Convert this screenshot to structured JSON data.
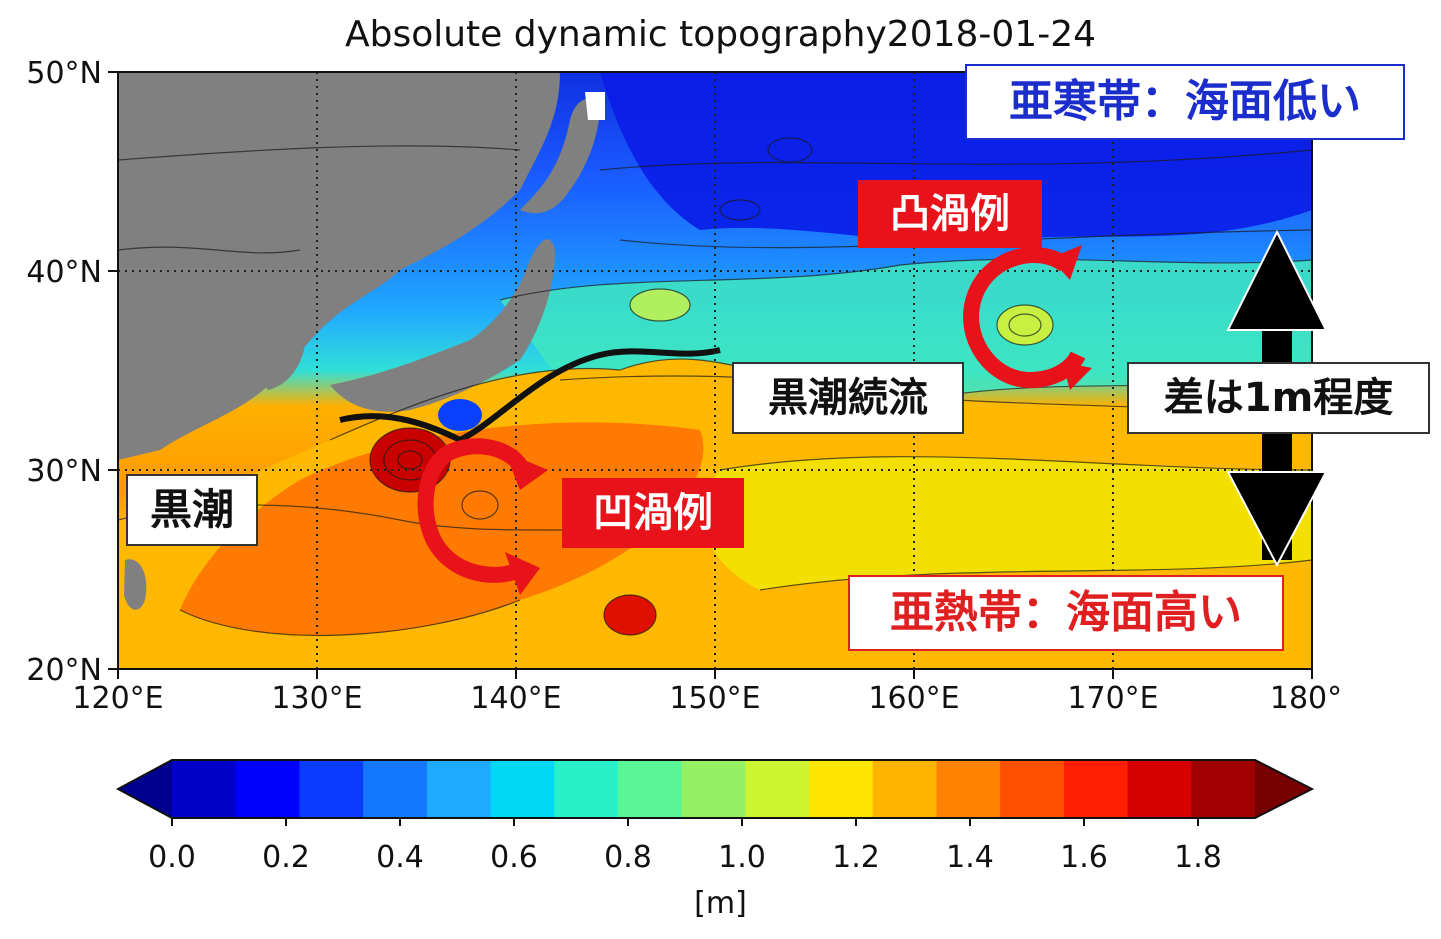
{
  "title": "Absolute dynamic topography2018-01-24",
  "map": {
    "lon_range": [
      120,
      180
    ],
    "lat_range": [
      20,
      50
    ],
    "lat_ticks": [
      "20°N",
      "30°N",
      "40°N",
      "50°N"
    ],
    "lon_ticks": [
      "120°E",
      "130°E",
      "140°E",
      "150°E",
      "160°E",
      "170°E",
      "180°"
    ],
    "land_color": "#808080",
    "grid": "dotted"
  },
  "annotations": {
    "subarctic": "亜寒帯：海面低い",
    "subtropical": "亜熱帯：海面高い",
    "warm_eddy": "凸渦例",
    "cold_eddy": "凹渦例",
    "kuroshio": "黒潮",
    "kuroshio_extension": "黒潮続流",
    "difference": "差は1m程度"
  },
  "colorbar": {
    "unit": "[m]",
    "ticks": [
      "0.0",
      "0.2",
      "0.4",
      "0.6",
      "0.8",
      "1.0",
      "1.2",
      "1.4",
      "1.6",
      "1.8"
    ],
    "colors": [
      "#00008f",
      "#0000c8",
      "#0000ff",
      "#0a3cff",
      "#1478ff",
      "#1eaaff",
      "#00d8f5",
      "#28f0c8",
      "#5af596",
      "#96f064",
      "#cdf532",
      "#ffe600",
      "#ffb400",
      "#ff8200",
      "#ff5000",
      "#ff1e00",
      "#d70000",
      "#a00000",
      "#780000"
    ],
    "extend": "both"
  }
}
